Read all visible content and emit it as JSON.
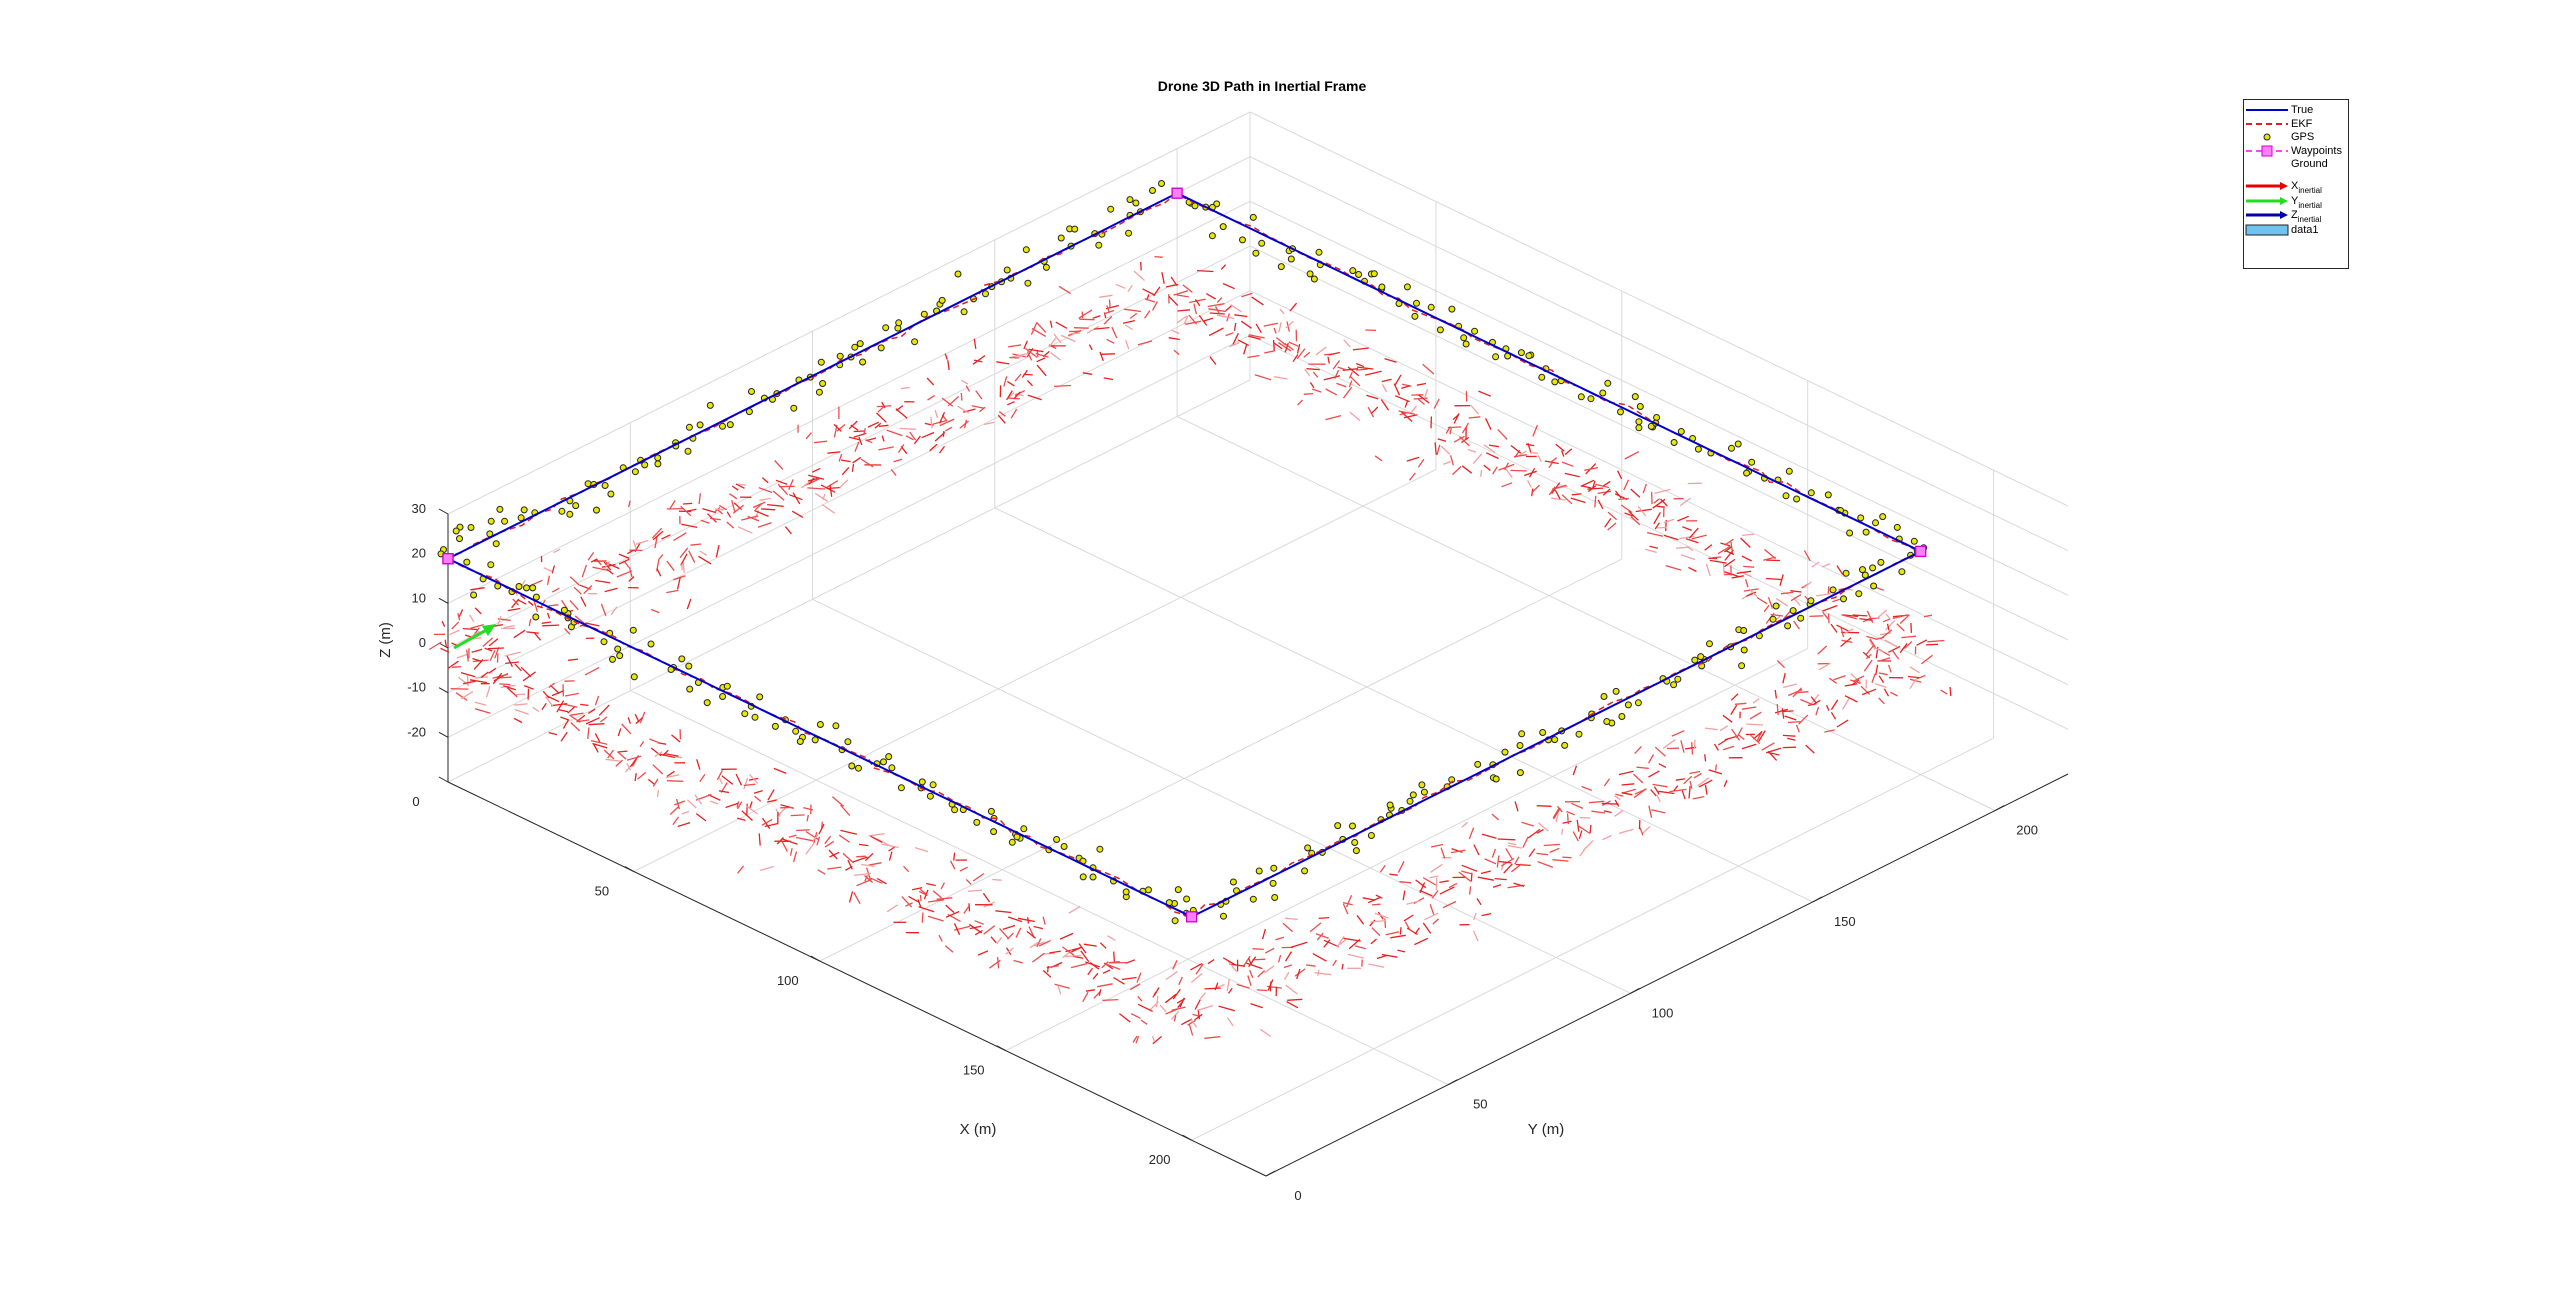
{
  "chart_data": {
    "type": "line3d",
    "title": "Drone 3D Path in Inertial Frame",
    "xlabel": "X (m)",
    "ylabel": "Y (m)",
    "zlabel": "Z (m)",
    "xlim": [
      0,
      220
    ],
    "ylim": [
      0,
      220
    ],
    "zlim": [
      -30,
      30
    ],
    "x_ticks": [
      "0",
      "50",
      "100",
      "150",
      "200"
    ],
    "y_ticks": [
      "0",
      "50",
      "100",
      "150",
      "200"
    ],
    "z_ticks": [
      "30",
      "20",
      "10",
      "0",
      "-10",
      "-20"
    ],
    "grid": true,
    "legend_position": "top-right",
    "waypoints": [
      [
        0,
        0,
        20
      ],
      [
        0,
        200,
        20
      ],
      [
        200,
        200,
        20
      ],
      [
        200,
        0,
        20
      ],
      [
        0,
        0,
        20
      ]
    ],
    "series": [
      {
        "name": "True",
        "color": "#0000cc",
        "style": "solid"
      },
      {
        "name": "EKF",
        "color": "#e02020",
        "style": "dashed"
      },
      {
        "name": "GPS",
        "color": "#e6e600",
        "style": "markers"
      },
      {
        "name": "Waypoints",
        "color": "#ff00ff",
        "style": "dash-square"
      },
      {
        "name": "Ground",
        "color": "#ffffff",
        "style": "none"
      },
      {
        "name": "X_inertial",
        "base": "X",
        "sub": "inertial",
        "color": "#e60000",
        "style": "arrow"
      },
      {
        "name": "Y_inertial",
        "base": "Y",
        "sub": "inertial",
        "color": "#22dd22",
        "style": "arrow"
      },
      {
        "name": "Z_inertial",
        "base": "Z",
        "sub": "inertial",
        "color": "#0000aa",
        "style": "arrow"
      },
      {
        "name": "data1",
        "color": "#6fc3ee",
        "style": "patch"
      }
    ]
  }
}
